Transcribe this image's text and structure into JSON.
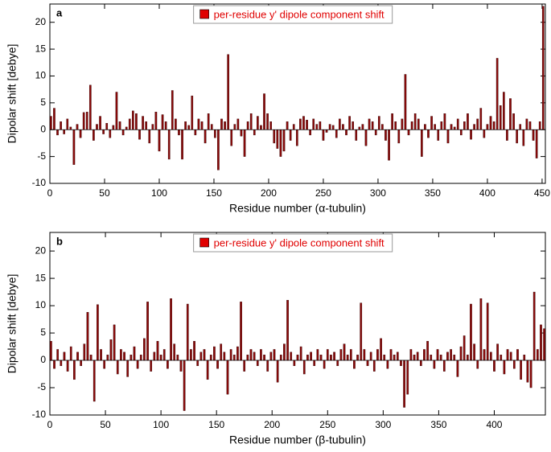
{
  "chart_data": [
    {
      "type": "bar",
      "panel_label": "a",
      "y_label": "Dipolar shift [debye]",
      "x_label": "Residue number (α-tubulin)",
      "xlim": [
        0,
        453
      ],
      "xticks": [
        0,
        50,
        100,
        150,
        200,
        250,
        300,
        350,
        400,
        450
      ],
      "ylim": [
        -10,
        23.4
      ],
      "yticks": [
        -10,
        -5,
        0,
        5,
        10,
        15,
        20
      ],
      "x": [
        1,
        4,
        7,
        10,
        13,
        16,
        19,
        22,
        25,
        28,
        31,
        34,
        37,
        40,
        43,
        46,
        49,
        52,
        55,
        58,
        61,
        64,
        67,
        70,
        73,
        76,
        79,
        82,
        85,
        88,
        91,
        94,
        97,
        100,
        103,
        106,
        109,
        112,
        115,
        118,
        121,
        124,
        127,
        130,
        133,
        136,
        139,
        142,
        145,
        148,
        151,
        154,
        157,
        160,
        163,
        166,
        169,
        172,
        175,
        178,
        181,
        184,
        187,
        190,
        193,
        196,
        199,
        202,
        205,
        208,
        211,
        214,
        217,
        220,
        223,
        226,
        229,
        232,
        235,
        238,
        241,
        244,
        247,
        250,
        253,
        256,
        259,
        262,
        265,
        268,
        271,
        274,
        277,
        280,
        283,
        286,
        289,
        292,
        295,
        298,
        301,
        304,
        307,
        310,
        313,
        316,
        319,
        322,
        325,
        328,
        331,
        334,
        337,
        340,
        343,
        346,
        349,
        352,
        355,
        358,
        361,
        364,
        367,
        370,
        373,
        376,
        379,
        382,
        385,
        388,
        391,
        394,
        397,
        400,
        403,
        406,
        409,
        412,
        415,
        418,
        421,
        424,
        427,
        430,
        433,
        436,
        439,
        442,
        445,
        448,
        451
      ],
      "series": [
        {
          "name": "per-residue y' dipole component shift",
          "color": "#8b0a0a",
          "values": [
            2.5,
            4,
            -1,
            1.5,
            -0.8,
            2,
            0.5,
            -6.5,
            1,
            -1.5,
            3.2,
            3.3,
            8.3,
            -2,
            1,
            2.5,
            -0.8,
            1.2,
            -1.5,
            0.8,
            7,
            1.5,
            -1,
            0.5,
            2,
            3.5,
            3,
            -1.8,
            2.5,
            1.5,
            -2.5,
            1,
            3.3,
            -4,
            2.8,
            1.5,
            -5.5,
            7.3,
            2,
            -1,
            -5.5,
            1.5,
            0.8,
            6.3,
            -1,
            2,
            1.5,
            -2.5,
            3,
            1,
            -1.5,
            -7.5,
            2,
            1.5,
            14,
            -3,
            1,
            2,
            -1.2,
            -5,
            1.5,
            3,
            -1,
            2.5,
            0.8,
            6.7,
            3,
            1.5,
            -2.5,
            -3.5,
            -5,
            -4,
            1.5,
            -2,
            1,
            -3,
            2,
            2.5,
            1.8,
            -1,
            2,
            1,
            1.5,
            -2,
            -0.5,
            1,
            0.8,
            -1.5,
            2,
            1,
            -1,
            2.5,
            1.5,
            -2,
            0.5,
            1,
            -3,
            2,
            1.5,
            -1,
            2.5,
            1,
            -2,
            -5.7,
            3,
            1.5,
            -2.5,
            2,
            10.3,
            -1,
            1.5,
            3,
            2,
            -5,
            1,
            -1.5,
            2.5,
            1,
            -2,
            1.5,
            3,
            -2.5,
            1,
            0.5,
            2,
            -1,
            1.5,
            3,
            -1.8,
            1,
            2,
            4,
            -1.5,
            1,
            2.5,
            1.5,
            13.3,
            4.5,
            7,
            -2,
            5.8,
            3,
            -2.5,
            1,
            -3,
            2,
            1.5,
            -2,
            -5.3,
            1.5,
            23
          ]
        }
      ]
    },
    {
      "type": "bar",
      "panel_label": "b",
      "y_label": "Dipolar shift [debye]",
      "x_label": "Residue number (β-tubulin)",
      "xlim": [
        0,
        446
      ],
      "xticks": [
        0,
        50,
        100,
        150,
        200,
        250,
        300,
        350,
        400
      ],
      "ylim": [
        -10,
        23.4
      ],
      "yticks": [
        -10,
        -5,
        0,
        5,
        10,
        15,
        20
      ],
      "x": [
        1,
        4,
        7,
        10,
        13,
        16,
        19,
        22,
        25,
        28,
        31,
        34,
        37,
        40,
        43,
        46,
        49,
        52,
        55,
        58,
        61,
        64,
        67,
        70,
        73,
        76,
        79,
        82,
        85,
        88,
        91,
        94,
        97,
        100,
        103,
        106,
        109,
        112,
        115,
        118,
        121,
        124,
        127,
        130,
        133,
        136,
        139,
        142,
        145,
        148,
        151,
        154,
        157,
        160,
        163,
        166,
        169,
        172,
        175,
        178,
        181,
        184,
        187,
        190,
        193,
        196,
        199,
        202,
        205,
        208,
        211,
        214,
        217,
        220,
        223,
        226,
        229,
        232,
        235,
        238,
        241,
        244,
        247,
        250,
        253,
        256,
        259,
        262,
        265,
        268,
        271,
        274,
        277,
        280,
        283,
        286,
        289,
        292,
        295,
        298,
        301,
        304,
        307,
        310,
        313,
        316,
        319,
        322,
        325,
        328,
        331,
        334,
        337,
        340,
        343,
        346,
        349,
        352,
        355,
        358,
        361,
        364,
        367,
        370,
        373,
        376,
        379,
        382,
        385,
        388,
        391,
        394,
        397,
        400,
        403,
        406,
        409,
        412,
        415,
        418,
        421,
        424,
        427,
        430,
        433,
        436,
        439,
        442,
        445
      ],
      "series": [
        {
          "name": "per-residue y' dipole component shift",
          "color": "#8b0a0a",
          "values": [
            3.5,
            -1.5,
            2,
            -1,
            1.5,
            -2,
            2.5,
            -3.5,
            1.5,
            -1,
            3,
            8.8,
            1,
            -7.5,
            10.2,
            2,
            -1.5,
            1,
            3.8,
            6.5,
            -2.5,
            2,
            1.5,
            -3,
            1,
            2.5,
            -1.5,
            1,
            4,
            10.7,
            -2,
            1.5,
            3.5,
            1,
            2,
            -1.5,
            11.3,
            3,
            1,
            -2,
            -9.2,
            10.3,
            2,
            3.5,
            -1,
            1.5,
            2,
            -3.5,
            1,
            2.5,
            -1.5,
            3,
            1.5,
            -6.2,
            2,
            1,
            2.5,
            10.7,
            -2,
            1,
            2,
            1.5,
            -1,
            2,
            1,
            -2,
            1.5,
            2,
            -4,
            1,
            3,
            11,
            1.5,
            -1,
            1,
            2.5,
            -2.5,
            1,
            1.5,
            -1,
            2,
            1,
            -1.5,
            2,
            1,
            1.5,
            -1,
            2,
            3,
            1,
            2,
            -1.5,
            1,
            10.5,
            2,
            -1,
            1.5,
            -2,
            2,
            4,
            1,
            -1.5,
            2,
            1,
            1.5,
            -1,
            -8.6,
            -6.2,
            2,
            1,
            1.5,
            -1,
            2,
            3.5,
            1,
            -1.5,
            2,
            1,
            -2,
            1.5,
            2,
            1,
            -3,
            2.5,
            4.5,
            1,
            10.3,
            3,
            -1.5,
            11.3,
            2,
            10.5,
            1.5,
            -2,
            3,
            1,
            -2.5,
            2,
            1.5,
            -1.5,
            2,
            -3.5,
            1,
            -4,
            -5,
            12.5,
            2,
            6.5,
            5.8
          ]
        }
      ]
    }
  ]
}
